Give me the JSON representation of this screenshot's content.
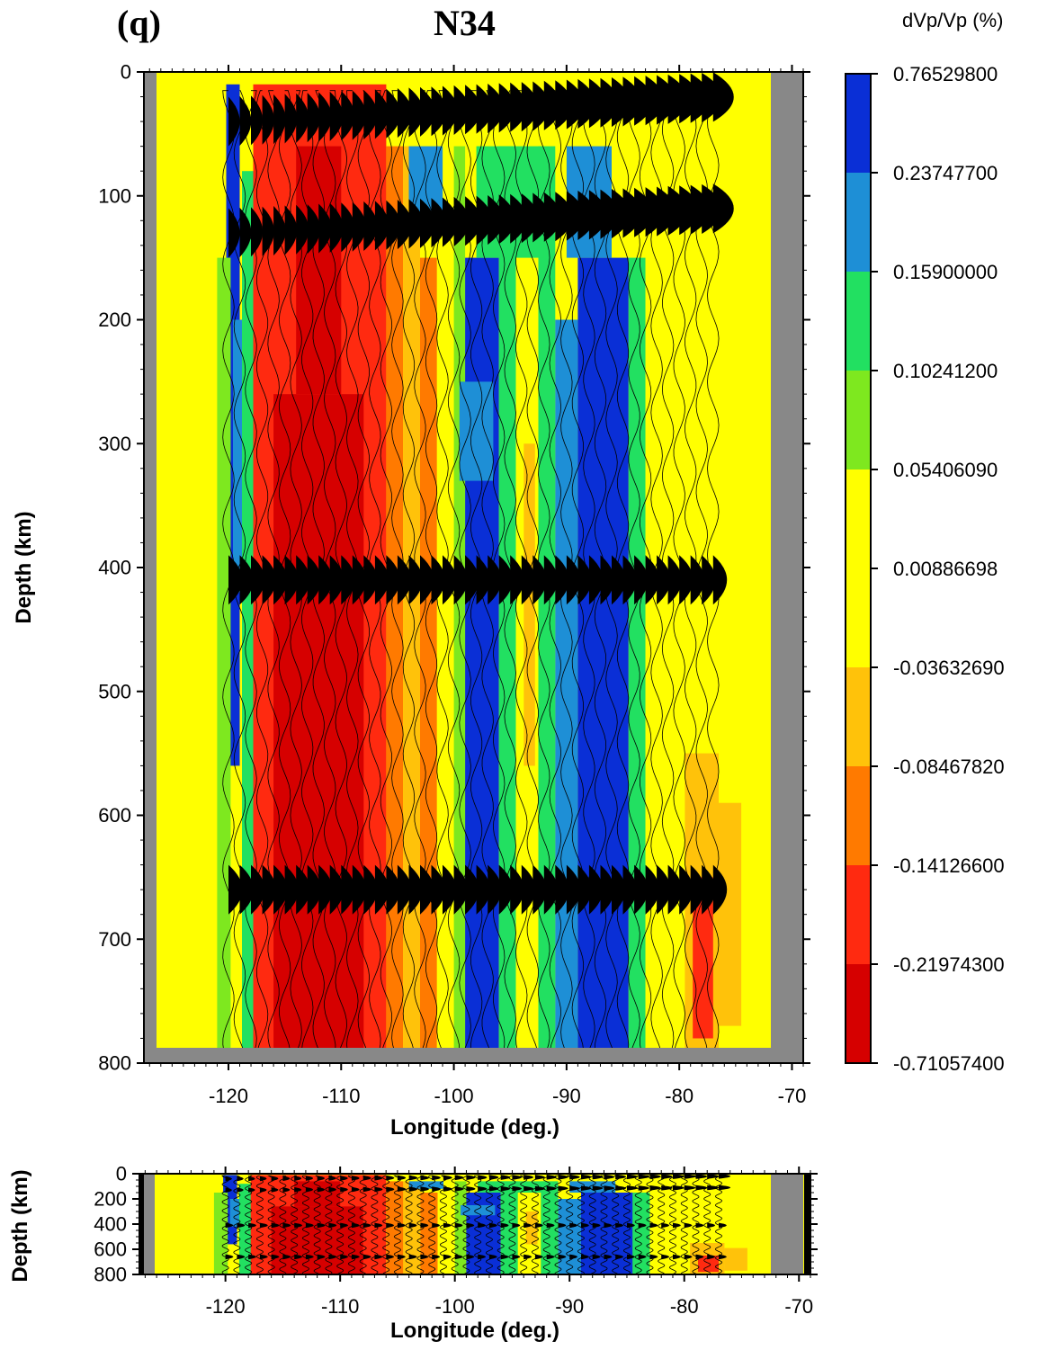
{
  "panel_label": "(q)",
  "title": "N34",
  "colorbar": {
    "title": "dVp/Vp (%)",
    "levels": [
      "0.76529800",
      "0.23747700",
      "0.15900000",
      "0.10241200",
      "0.05406090",
      "0.00886698",
      "-0.03632690",
      "-0.08467820",
      "-0.14126600",
      "-0.21974300",
      "-0.71057400"
    ],
    "colors": [
      "#0a2fd6",
      "#1e8fd6",
      "#22e061",
      "#7ee81f",
      "#ffff00",
      "#ffff00",
      "#ffc20a",
      "#ff7a00",
      "#ff2a10",
      "#d60000"
    ]
  },
  "colors": {
    "background": "#ffff00",
    "mask": "#888888",
    "wave_fill": "#000000"
  },
  "chart_data": [
    {
      "type": "heatmap",
      "name": "main",
      "xlabel": "Longitude (deg.)",
      "ylabel": "Depth (km)",
      "xlim": [
        -127.5,
        -69
      ],
      "ylim": [
        0,
        800
      ],
      "y_inverted": true,
      "xticks": [
        "-120",
        "-110",
        "-100",
        "-90",
        "-80",
        "-70"
      ],
      "yticks": [
        "0",
        "100",
        "200",
        "300",
        "400",
        "500",
        "600",
        "700",
        "800"
      ],
      "station_longitude_range": [
        -120,
        -76.5
      ],
      "velocity_columns": [
        {
          "lon_range": [
            -120,
            -118.5
          ],
          "dvp": "fast"
        },
        {
          "lon_range": [
            -118,
            -106
          ],
          "dvp": "slow"
        },
        {
          "lon_range": [
            -102,
            -99.5
          ],
          "dvp": "near zero"
        },
        {
          "lon_range": [
            -99,
            -95
          ],
          "dvp": "fast"
        },
        {
          "lon_range": [
            -88.5,
            -84
          ],
          "dvp": "fast"
        },
        {
          "lon_range": [
            -79,
            -74
          ],
          "dvp": "slightly slow"
        }
      ],
      "converted_phase_depths_km": [
        40,
        130,
        410,
        660
      ],
      "mask_longitude_range": [
        -72,
        -69
      ]
    },
    {
      "type": "heatmap",
      "name": "overview",
      "xlabel": "Longitude (deg.)",
      "ylabel": "Depth (km)",
      "xlim": [
        -127.5,
        -69
      ],
      "ylim": [
        0,
        800
      ],
      "y_inverted": true,
      "xticks": [
        "-120",
        "-110",
        "-100",
        "-90",
        "-80",
        "-70"
      ],
      "yticks": [
        "0",
        "200",
        "400",
        "600",
        "800"
      ]
    }
  ]
}
